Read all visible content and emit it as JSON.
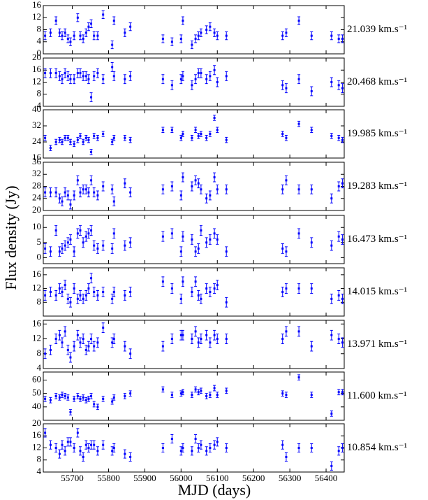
{
  "chart_data": {
    "type": "scatter",
    "color": "#0000ff",
    "xlabel": "MJD (days)",
    "ylabel": "Flux density (Jy)",
    "xlim": [
      55620,
      56450
    ],
    "xticks": [
      55700,
      55800,
      55900,
      56000,
      56100,
      56200,
      56300,
      56400
    ],
    "x": [
      55625,
      55640,
      55655,
      55665,
      55672,
      55680,
      55688,
      55695,
      55705,
      55715,
      55722,
      55730,
      55738,
      55745,
      55752,
      55760,
      55770,
      55785,
      55810,
      55815,
      55845,
      55860,
      55950,
      55975,
      56000,
      56005,
      56030,
      56040,
      56048,
      56055,
      56070,
      56080,
      56092,
      56100,
      56125,
      56280,
      56290,
      56325,
      56360,
      56415,
      56435,
      56445
    ],
    "panels": [
      {
        "name": "21.039 km.s⁻¹",
        "ylim": [
          0,
          16
        ],
        "yticks": [
          0,
          4,
          8,
          12,
          16
        ],
        "error": 1.3,
        "values": [
          6,
          7,
          11,
          7,
          6,
          7,
          5,
          4,
          6,
          12,
          6,
          5,
          7,
          9,
          10,
          6,
          6,
          13,
          3,
          11,
          7,
          9,
          5,
          4,
          5,
          11,
          3,
          5,
          6,
          7,
          8,
          9,
          7,
          6,
          6,
          6,
          7,
          11,
          6,
          6,
          5,
          5
        ]
      },
      {
        "name": "20.468 km.s⁻¹",
        "ylim": [
          4,
          20
        ],
        "yticks": [
          4,
          8,
          12,
          16,
          20
        ],
        "error": 1.5,
        "values": [
          15,
          15,
          15,
          14,
          13,
          15,
          14,
          13,
          13,
          15,
          15,
          14,
          14,
          13,
          7,
          14,
          15,
          13,
          17,
          14,
          13,
          14,
          13,
          11,
          13,
          14,
          11,
          13,
          15,
          15,
          13,
          14,
          16,
          12,
          14,
          11,
          10,
          13,
          9,
          12,
          11,
          10
        ]
      },
      {
        "name": "19.985 km.s⁻¹",
        "ylim": [
          16,
          40
        ],
        "yticks": [
          16,
          24,
          32,
          40
        ],
        "error": 1.3,
        "values": [
          26,
          21,
          24,
          25,
          24,
          26,
          26,
          24,
          23,
          25,
          27,
          24,
          26,
          25,
          19,
          27,
          26,
          28,
          24,
          26,
          26,
          25,
          30,
          30,
          26,
          28,
          26,
          30,
          27,
          28,
          26,
          28,
          36,
          30,
          25,
          28,
          26,
          33,
          30,
          27,
          26,
          25
        ]
      },
      {
        "name": "19.283 km.s⁻¹",
        "ylim": [
          20,
          36
        ],
        "yticks": [
          20,
          24,
          28,
          32,
          36
        ],
        "error": 1.5,
        "values": [
          26,
          26,
          26,
          24,
          23,
          26,
          25,
          22,
          25,
          30,
          26,
          27,
          27,
          26,
          30,
          26,
          25,
          28,
          27,
          23,
          29,
          26,
          27,
          28,
          25,
          31,
          28,
          30,
          29,
          27,
          24,
          25,
          31,
          27,
          27,
          27,
          30,
          27,
          27,
          24,
          28,
          29
        ]
      },
      {
        "name": "16.473 km.s⁻¹",
        "ylim": [
          -2,
          14
        ],
        "yticks": [
          0,
          5,
          10
        ],
        "error": 1.6,
        "values": [
          3,
          2,
          9,
          2,
          3,
          4,
          5,
          6,
          2,
          8,
          9,
          5,
          7,
          8,
          9,
          4,
          3,
          4,
          3,
          8,
          4,
          5,
          7,
          8,
          2,
          7,
          6,
          2,
          3,
          9,
          5,
          6,
          8,
          6,
          2,
          3,
          2,
          8,
          5,
          4,
          7,
          6
        ]
      },
      {
        "name": "14.015 km.s⁻¹",
        "ylim": [
          4,
          18
        ],
        "yticks": [
          8,
          12,
          16
        ],
        "error": 1.4,
        "values": [
          10,
          11,
          10,
          12,
          11,
          13,
          9,
          8,
          12,
          9,
          10,
          9,
          10,
          12,
          15,
          11,
          10,
          11,
          9,
          11,
          10,
          11,
          14,
          12,
          9,
          14,
          11,
          14,
          10,
          9,
          12,
          11,
          12,
          13,
          8,
          11,
          12,
          12,
          12,
          9,
          10,
          9
        ]
      },
      {
        "name": "13.971 km.s⁻¹",
        "ylim": [
          4,
          17
        ],
        "yticks": [
          4,
          8,
          12,
          16
        ],
        "error": 1.3,
        "values": [
          8,
          9,
          12,
          13,
          11,
          14,
          9,
          7,
          10,
          13,
          11,
          12,
          9,
          10,
          12,
          10,
          11,
          15,
          11,
          12,
          10,
          8,
          10,
          12,
          13,
          13,
          12,
          14,
          11,
          12,
          13,
          11,
          13,
          12,
          12,
          12,
          14,
          14,
          10,
          13,
          12,
          11
        ]
      },
      {
        "name": "11.600 km.s⁻¹",
        "ylim": [
          30,
          66
        ],
        "yticks": [
          40,
          50,
          60
        ],
        "error": 2,
        "values": [
          46,
          45,
          48,
          47,
          49,
          48,
          47,
          36,
          46,
          48,
          46,
          47,
          45,
          46,
          48,
          42,
          40,
          46,
          44,
          47,
          48,
          50,
          53,
          49,
          50,
          51,
          49,
          53,
          51,
          52,
          48,
          49,
          54,
          49,
          52,
          50,
          49,
          62,
          49,
          35,
          51,
          51
        ]
      },
      {
        "name": "10.854 km.s⁻¹",
        "ylim": [
          4,
          20
        ],
        "yticks": [
          4,
          8,
          12,
          16,
          20
        ],
        "error": 1.4,
        "values": [
          17,
          13,
          12,
          10,
          13,
          11,
          14,
          14,
          12,
          17,
          11,
          9,
          13,
          12,
          13,
          13,
          11,
          13,
          11,
          12,
          10,
          9,
          12,
          15,
          11,
          12,
          11,
          15,
          12,
          13,
          11,
          12,
          13,
          14,
          12,
          13,
          9,
          12,
          12,
          6,
          11,
          12
        ]
      }
    ]
  }
}
